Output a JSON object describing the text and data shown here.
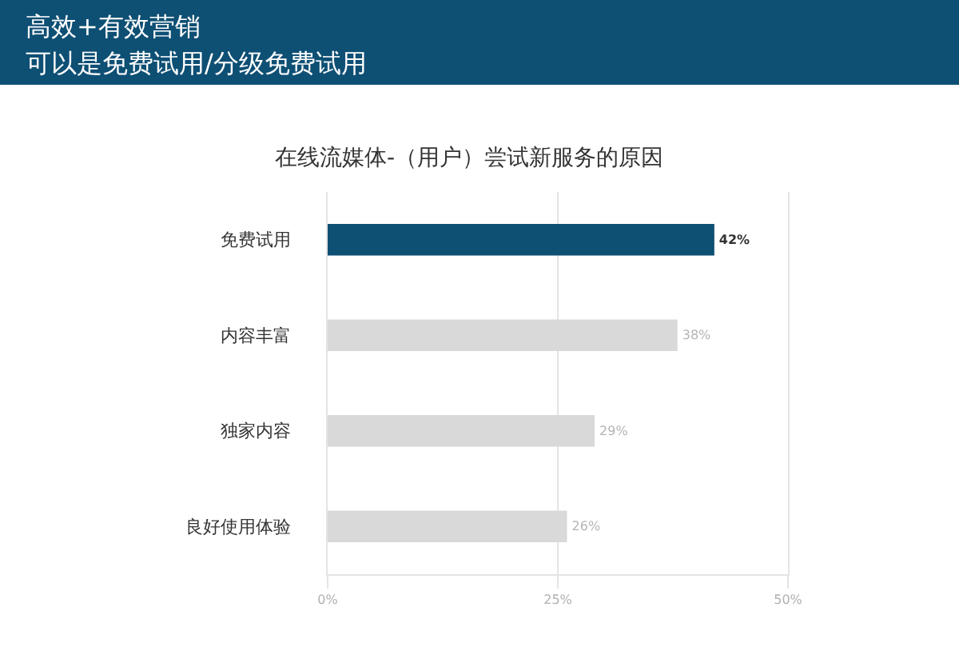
{
  "chart_data": {
    "type": "bar",
    "orientation": "horizontal",
    "title": "高效+有效营销",
    "subtitle": "可以是免费试用/分级免费试用",
    "annotations": [
      "在线流媒体-（用户）尝试新服务的原因"
    ],
    "categories": [
      "免费试用",
      "内容丰富",
      "独家内容",
      "良好使用体验"
    ],
    "values": [
      42,
      38,
      29,
      26
    ],
    "colors": [
      "#0e4f74",
      "#d9d9d9",
      "#d9d9d9",
      "#d9d9d9"
    ],
    "value_labels": [
      "42%",
      "38%",
      "29%",
      "26%"
    ],
    "xlim": [
      0,
      50
    ],
    "xticks": [
      {
        "value": 0,
        "label": "0%"
      },
      {
        "value": 25,
        "label": "25%"
      },
      {
        "value": 50,
        "label": "50%"
      }
    ],
    "grid": "x"
  }
}
